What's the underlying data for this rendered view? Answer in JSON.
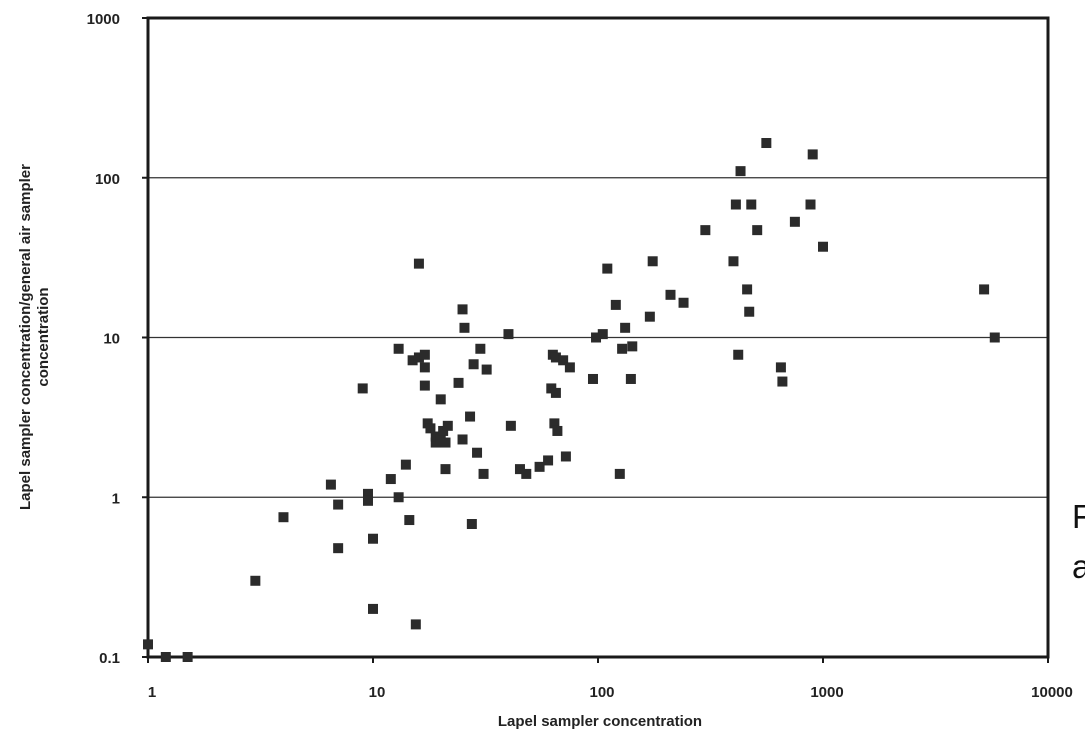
{
  "chart_data": {
    "type": "scatter",
    "title": "",
    "xlabel": "Lapel sampler concentration",
    "ylabel": [
      "Lapel sampler concentration/general air sampler",
      "concentration"
    ],
    "xscale": "log",
    "yscale": "log",
    "xlim": [
      1,
      10000
    ],
    "ylim": [
      0.1,
      1000
    ],
    "x_tick_labels": [
      "1",
      "10",
      "100",
      "1000",
      "10000"
    ],
    "y_tick_labels": [
      "0.1",
      "1",
      "10",
      "100",
      "1000"
    ],
    "y_tick_values": [
      0.1,
      1,
      10,
      100,
      1000
    ],
    "reference_lines_y": [
      1,
      10,
      100
    ],
    "grid": false,
    "legend": "none",
    "marker": "square",
    "marker_color": "#2b2b2b",
    "series": [
      {
        "x": [
          1,
          1.2,
          1.5,
          3,
          4,
          6.5,
          7,
          7,
          9,
          9.5,
          9.5,
          10,
          10,
          12,
          13,
          13,
          14,
          14.5,
          15,
          15.5,
          16,
          16,
          17,
          17,
          17,
          17.5,
          18,
          19,
          19,
          20,
          20,
          20.5,
          21,
          21,
          21.5,
          24,
          25,
          25,
          25.5,
          27,
          27.5,
          28,
          29,
          30,
          31,
          32,
          40,
          41,
          45,
          48,
          55,
          60,
          62,
          63,
          64,
          65,
          65,
          66,
          70,
          72,
          75,
          95,
          98,
          105,
          110,
          120,
          125,
          128,
          132,
          140,
          142,
          170,
          175,
          210,
          240,
          300,
          400,
          410,
          420,
          430,
          460,
          470,
          480,
          510,
          560,
          650,
          660,
          750,
          880,
          900,
          1000,
          5200,
          5800
        ],
        "y": [
          0.12,
          0.1,
          0.1,
          0.3,
          0.75,
          1.2,
          0.9,
          0.48,
          4.8,
          1.05,
          0.95,
          0.55,
          0.2,
          1.3,
          8.5,
          1.0,
          1.6,
          0.72,
          7.2,
          0.16,
          7.5,
          29,
          7.8,
          6.5,
          5.0,
          2.9,
          2.7,
          2.2,
          2.4,
          4.1,
          2.3,
          2.6,
          2.2,
          1.5,
          2.8,
          5.2,
          15,
          2.3,
          11.5,
          3.2,
          0.68,
          6.8,
          1.9,
          8.5,
          1.4,
          6.3,
          10.5,
          2.8,
          1.5,
          1.4,
          1.55,
          1.7,
          4.8,
          7.8,
          2.9,
          7.5,
          4.5,
          2.6,
          7.2,
          1.8,
          6.5,
          5.5,
          10,
          10.5,
          27,
          16,
          1.4,
          8.5,
          11.5,
          5.5,
          8.8,
          13.5,
          30,
          18.5,
          16.5,
          47,
          30,
          68,
          7.8,
          110,
          20,
          14.5,
          68,
          47,
          165,
          6.5,
          5.3,
          53,
          68,
          140,
          37,
          20,
          10
        ]
      }
    ]
  },
  "side_text": {
    "line1": "F",
    "line2": "a"
  }
}
